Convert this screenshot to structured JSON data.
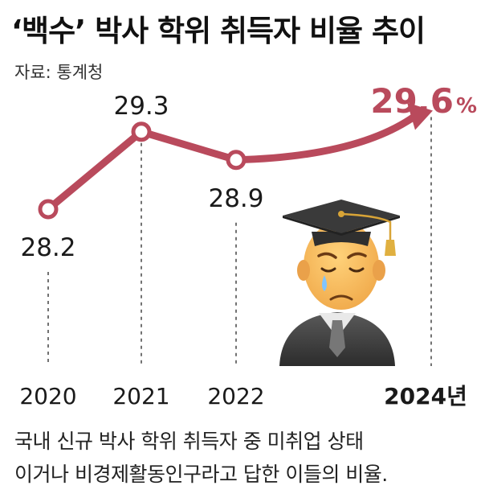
{
  "header": {
    "title": "‘백수’ 박사 학위 취득자 비율 추이",
    "source": "자료: 통계청"
  },
  "chart_data": {
    "type": "line",
    "categories": [
      "2020",
      "2021",
      "2022",
      "2024년"
    ],
    "values": [
      28.2,
      29.3,
      28.9,
      29.6
    ],
    "value_labels": [
      "28.2",
      "29.3",
      "28.9",
      "29.6"
    ],
    "highlight_unit": "%",
    "ylim": [
      27.8,
      29.8
    ],
    "title": "‘백수’ 박사 학위 취득자 비율 추이",
    "xlabel": "",
    "ylabel": "",
    "grid": false,
    "line_color": "#b94a5c",
    "highlight_color": "#b94a5c",
    "illustration": "graduate-cap-sad-face-icon"
  },
  "footnote": {
    "lines": [
      "국내 신규 박사 학위 취득자 중 미취업 상태",
      "이거나 비경제활동인구라고 답한 이들의 비율."
    ]
  }
}
